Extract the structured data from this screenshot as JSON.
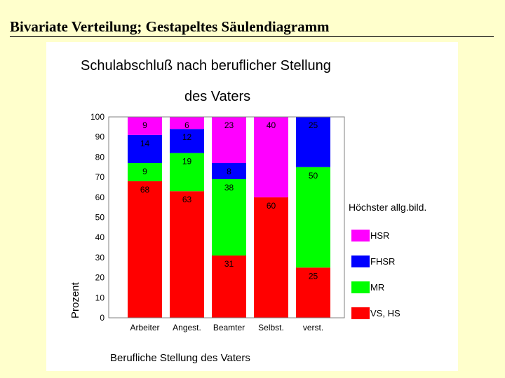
{
  "slide": {
    "title": "Bivariate Verteilung; Gestapeltes Säulendiagramm"
  },
  "chart_data": {
    "type": "bar",
    "stacked": true,
    "title_line1": "Schulabschluß nach beruflicher Stellung",
    "title_line2": "des Vaters",
    "xlabel": "Berufliche Stellung des Vaters",
    "ylabel": "Prozent",
    "ylim": [
      0,
      100
    ],
    "yticks": [
      "0",
      "10",
      "20",
      "30",
      "40",
      "50",
      "60",
      "70",
      "80",
      "90",
      "100"
    ],
    "categories": [
      "Arbeiter",
      "Angest.",
      "Beamter",
      "Selbst.",
      "verst."
    ],
    "legend_title": "Höchster allg.bild.",
    "legend_position": "right",
    "series": [
      {
        "name": "VS, HS",
        "color": "#ff0000",
        "values": [
          68,
          63,
          31,
          60,
          25
        ],
        "labels": [
          "68",
          "63",
          "31",
          "60",
          "25"
        ]
      },
      {
        "name": "MR",
        "color": "#00ff00",
        "values": [
          9,
          19,
          38,
          0,
          50
        ],
        "labels": [
          "9",
          "19",
          "38",
          "",
          "50"
        ]
      },
      {
        "name": "FHSR",
        "color": "#0000ff",
        "values": [
          14,
          12,
          8,
          0,
          25
        ],
        "labels": [
          "14",
          "12",
          "8",
          "",
          "25"
        ]
      },
      {
        "name": "HSR",
        "color": "#ff00ff",
        "values": [
          9,
          6,
          23,
          40,
          0
        ],
        "labels": [
          "9",
          "6",
          "23",
          "40",
          ""
        ]
      }
    ],
    "legend_order": [
      "HSR",
      "FHSR",
      "MR",
      "VS, HS"
    ],
    "grid": false
  }
}
